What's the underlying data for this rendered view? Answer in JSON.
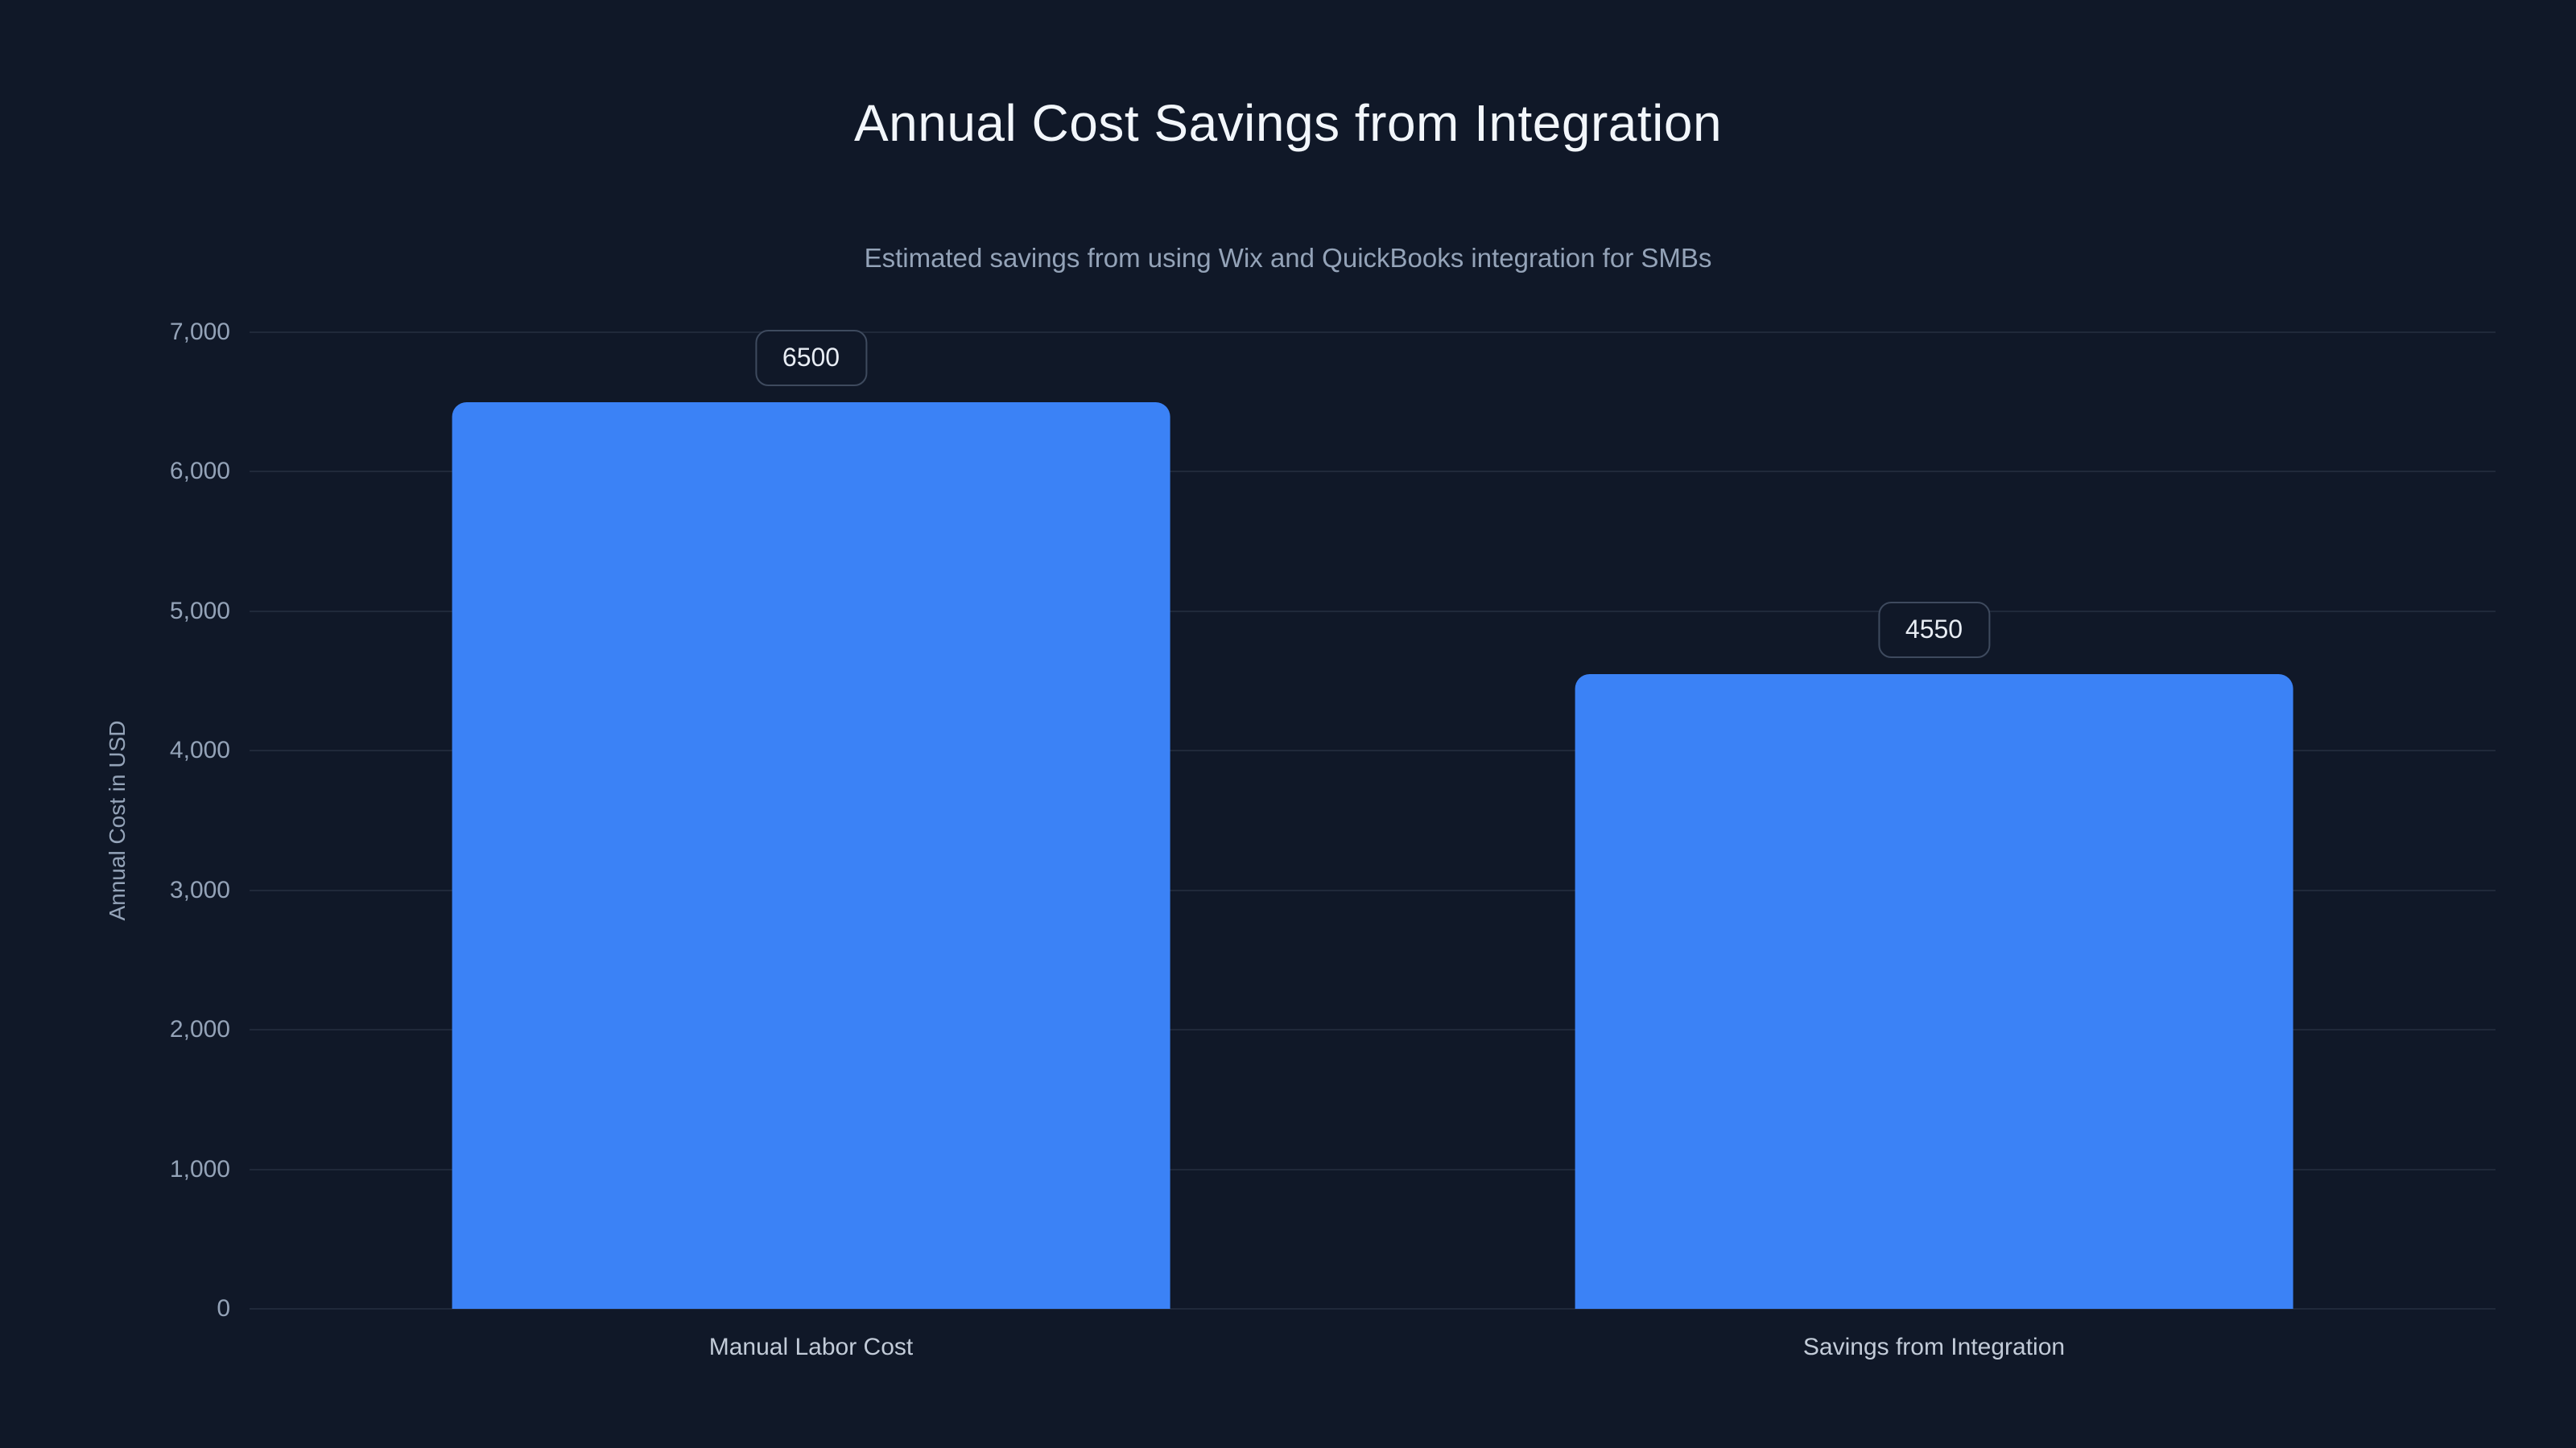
{
  "chart_data": {
    "type": "bar",
    "title": "Annual Cost Savings from Integration",
    "subtitle": "Estimated savings from using Wix and QuickBooks integration for SMBs",
    "ylabel": "Annual Cost in USD",
    "xlabel": "",
    "categories": [
      "Manual Labor Cost",
      "Savings from Integration"
    ],
    "values": [
      6500,
      4550
    ],
    "value_labels": [
      "6500",
      "4550"
    ],
    "ylim": [
      0,
      7000
    ],
    "yticks": [
      0,
      1000,
      2000,
      3000,
      4000,
      5000,
      6000,
      7000
    ],
    "ytick_labels": [
      "0",
      "1,000",
      "2,000",
      "3,000",
      "4,000",
      "5,000",
      "6,000",
      "7,000"
    ],
    "grid": true,
    "legend": "none",
    "colors": {
      "background": "#101828",
      "bar": "#3b82f6",
      "title": "#f2f6fb",
      "subtitle": "#94a3b8",
      "tick": "#94a3b8",
      "grid": "rgba(148,163,184,0.13)",
      "value_box_border": "#3e4a5e",
      "value_box_text": "#e8edf4"
    }
  }
}
